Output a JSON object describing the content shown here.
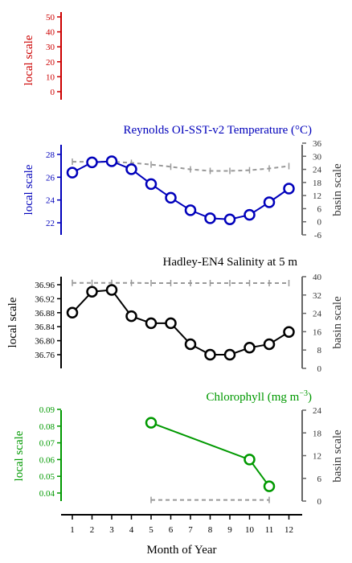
{
  "chart_data": [
    {
      "type": "line",
      "panel": "empty",
      "title": "",
      "ylabel": "local scale",
      "color": "#cc0000",
      "ylim": [
        0,
        50
      ],
      "yticks": [
        "50",
        "40",
        "30",
        "20",
        "10",
        "0"
      ],
      "series": []
    },
    {
      "type": "line",
      "panel": "temperature",
      "title": "Reynolds OI-SST-v2 Temperature (°C)",
      "ylabel": "local scale",
      "ylabel_right": "basin scale",
      "color": "#0000bb",
      "ylim": [
        21,
        28.8
      ],
      "yticks": [
        "28",
        "26",
        "24",
        "22"
      ],
      "right_ylim": [
        -6,
        36
      ],
      "right_yticks": [
        "36",
        "30",
        "24",
        "18",
        "12",
        "6",
        "0",
        "-6"
      ],
      "x": [
        1,
        2,
        3,
        4,
        5,
        6,
        7,
        8,
        9,
        10,
        11,
        12
      ],
      "series": [
        {
          "axis": "left",
          "style": "solid",
          "color": "#0000bb",
          "values": [
            26.4,
            27.3,
            27.4,
            26.7,
            25.4,
            24.2,
            23.1,
            22.4,
            22.3,
            22.7,
            23.8,
            25.0
          ]
        },
        {
          "axis": "right",
          "style": "dashed",
          "color": "#999999",
          "values": [
            27.5,
            27.5,
            27.5,
            27.0,
            26.2,
            25.2,
            24.0,
            23.3,
            23.3,
            23.6,
            24.4,
            25.5
          ]
        }
      ]
    },
    {
      "type": "line",
      "panel": "salinity",
      "title": "Hadley-EN4 Salinity at 5 m",
      "ylabel": "local scale",
      "ylabel_right": "basin scale",
      "color": "#000000",
      "ylim": [
        36.72,
        36.975
      ],
      "yticks": [
        "36.96",
        "36.92",
        "36.88",
        "36.84",
        "36.80",
        "36.76"
      ],
      "right_ylim": [
        0,
        40
      ],
      "right_yticks": [
        "40",
        "32",
        "24",
        "16",
        "8",
        "0"
      ],
      "x": [
        1,
        2,
        3,
        4,
        5,
        6,
        7,
        8,
        9,
        10,
        11,
        12
      ],
      "series": [
        {
          "axis": "left",
          "style": "solid",
          "color": "#000000",
          "values": [
            36.88,
            36.94,
            36.945,
            36.87,
            36.85,
            36.85,
            36.79,
            36.76,
            36.76,
            36.78,
            36.79,
            36.825
          ]
        },
        {
          "axis": "right",
          "style": "dashed",
          "color": "#999999",
          "values": [
            37.3,
            37.3,
            37.3,
            37.3,
            37.2,
            37.2,
            37.2,
            37.2,
            37.2,
            37.2,
            37.2,
            37.2
          ]
        }
      ]
    },
    {
      "type": "line",
      "panel": "chlorophyll",
      "title": "Chlorophyll (mg m",
      "title_sup": "−3",
      "title_end": ")",
      "ylabel": "local scale",
      "ylabel_right": "basin scale",
      "color": "#009900",
      "ylim": [
        0.035,
        0.09
      ],
      "yticks": [
        "0.09",
        "0.08",
        "0.07",
        "0.06",
        "0.05",
        "0.04"
      ],
      "right_ylim": [
        0,
        24
      ],
      "right_yticks": [
        "24",
        "18",
        "12",
        "6",
        "0"
      ],
      "x": [
        5,
        10,
        11
      ],
      "series": [
        {
          "axis": "left",
          "style": "solid",
          "color": "#009900",
          "values": [
            0.082,
            0.06,
            0.044
          ]
        },
        {
          "axis": "right",
          "style": "dashed",
          "color": "#999999",
          "x": [
            5,
            11
          ],
          "values": [
            0.3,
            0.3
          ]
        }
      ]
    }
  ],
  "xaxis": {
    "label": "Month of Year",
    "ticks": [
      "1",
      "2",
      "3",
      "4",
      "5",
      "6",
      "7",
      "8",
      "9",
      "10",
      "11",
      "12"
    ]
  }
}
